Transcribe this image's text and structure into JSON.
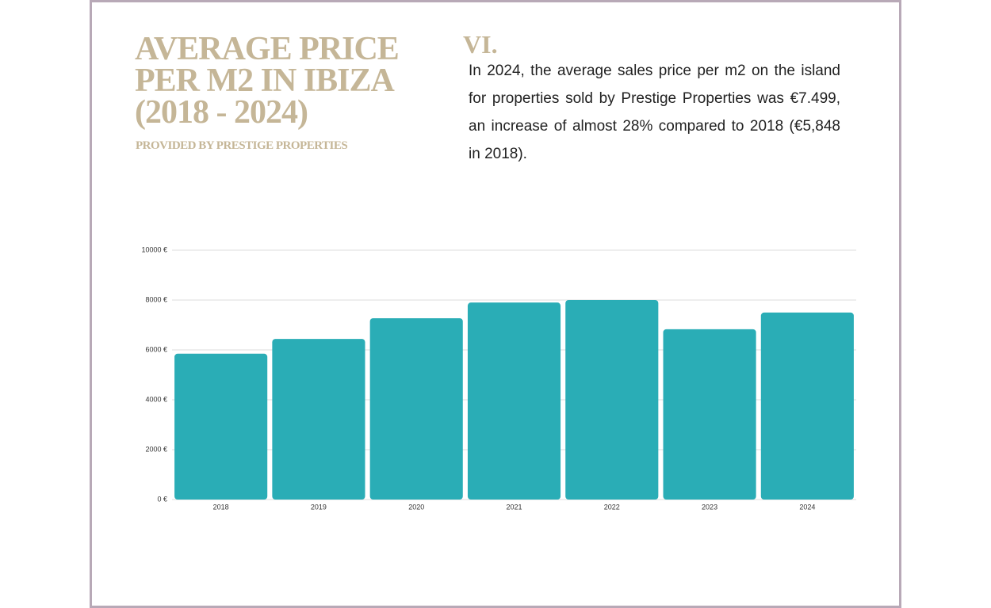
{
  "header": {
    "title": "AVERAGE PRICE PER M2 IN IBIZA (2018 - 2024)",
    "subtitle": "PROVIDED BY PRESTIGE PROPERTIES",
    "section": "VI.",
    "paragraph": "In 2024, the average sales price per m2 on the island for properties sold by Prestige Properties was €7.499, an increase of almost 28% compared to 2018 (€5,848 in 2018)."
  },
  "chart_data": {
    "type": "bar",
    "categories": [
      "2018",
      "2019",
      "2020",
      "2021",
      "2022",
      "2023",
      "2024"
    ],
    "values": [
      5848,
      6440,
      7270,
      7900,
      8000,
      6830,
      7499
    ],
    "color": "#2aadb6",
    "ylim": [
      0,
      10000
    ],
    "yticks": [
      {
        "value": 0,
        "label": "0 €"
      },
      {
        "value": 2000,
        "label": "2000 €"
      },
      {
        "value": 4000,
        "label": "4000 €"
      },
      {
        "value": 6000,
        "label": "6000 €"
      },
      {
        "value": 8000,
        "label": "8000 €"
      },
      {
        "value": 10000,
        "label": "10000 €"
      }
    ],
    "grid": true
  }
}
